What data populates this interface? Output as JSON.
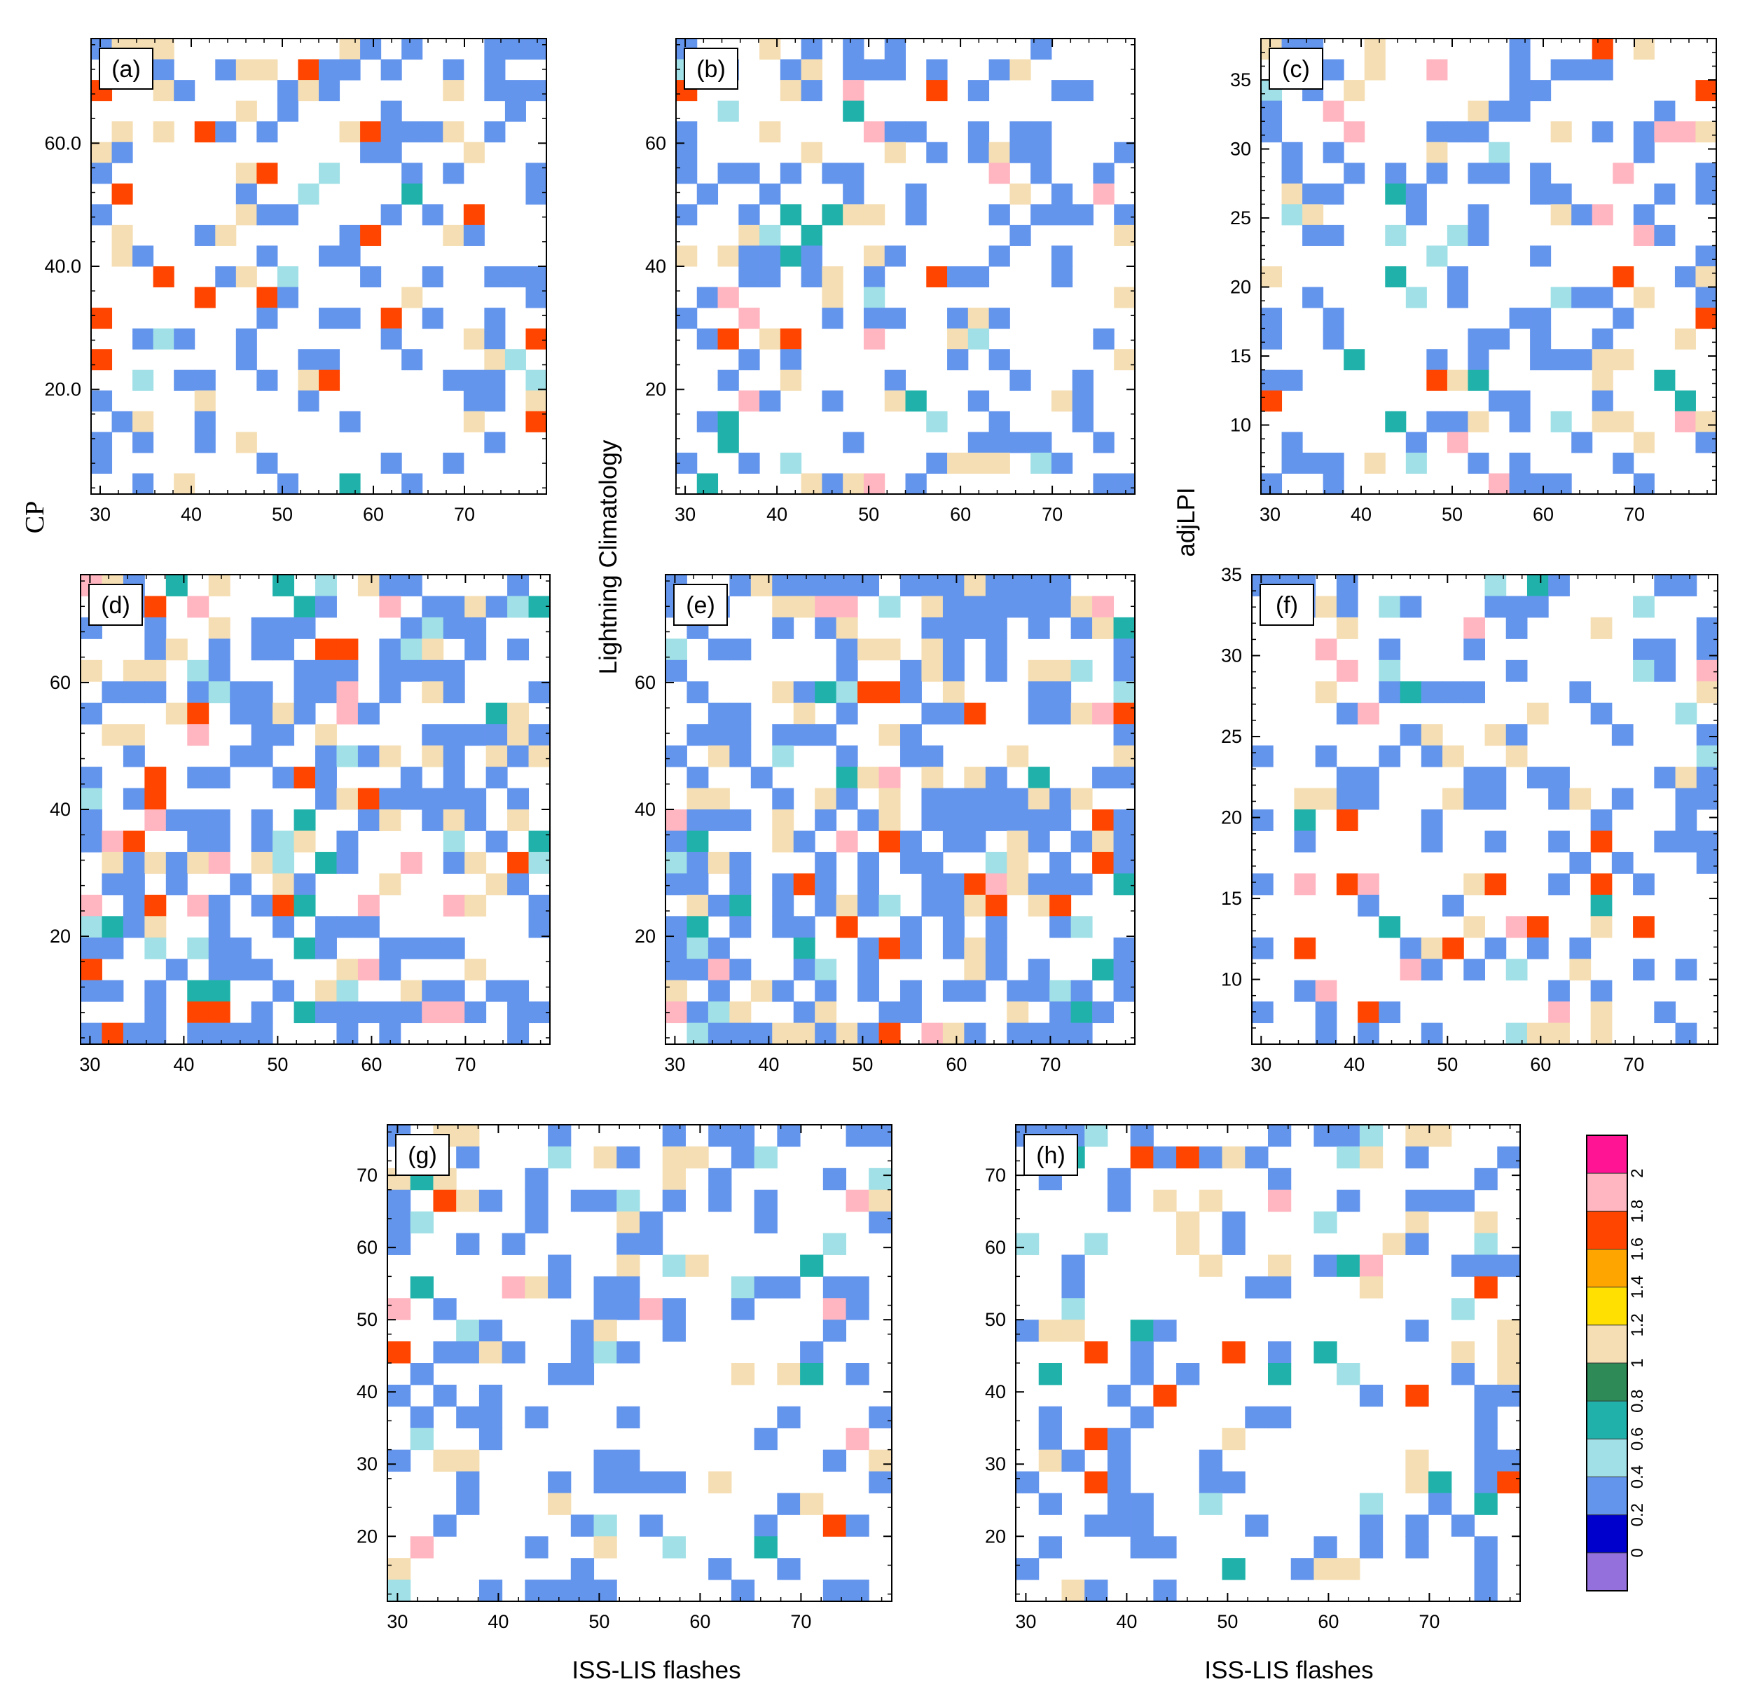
{
  "chart_data": {
    "type": "heatmap",
    "figure": {
      "x_axis_title": "ISS-LIS flashes",
      "y_axis_titles": [
        "CP",
        "Lightning Climatology",
        "adjLPI"
      ]
    },
    "colorbar": {
      "tick_labels": [
        "0",
        "0.2",
        "0.4",
        "0.6",
        "0.8",
        "1",
        "1.2",
        "1.4",
        "1.6",
        "1.8",
        "2"
      ],
      "colors": [
        "#9370db",
        "#0000cd",
        "#6495ed",
        "#a0e0e6",
        "#20b2aa",
        "#2e8b57",
        "#f5deb3",
        "#ffe000",
        "#ffa500",
        "#ff4500",
        "#ffb6c1",
        "#ff1493"
      ]
    },
    "panels": [
      {
        "id": "a",
        "label": "(a)",
        "xlim": [
          29,
          79
        ],
        "ylim": [
          3,
          77
        ],
        "xticks": [
          "30",
          "40",
          "50",
          "60",
          "70"
        ],
        "xvals": [
          30,
          40,
          50,
          60,
          70
        ],
        "yticks": [
          "20.0",
          "40.0",
          "60.0"
        ],
        "yvals": [
          20,
          40,
          60
        ],
        "show_xlabel": false,
        "seed": 11,
        "fill": 0.34,
        "max_level": 1.7
      },
      {
        "id": "b",
        "label": "(b)",
        "xlim": [
          29,
          79
        ],
        "ylim": [
          3,
          77
        ],
        "xticks": [
          "30",
          "40",
          "50",
          "60",
          "70"
        ],
        "xvals": [
          30,
          40,
          50,
          60,
          70
        ],
        "yticks": [
          "20",
          "40",
          "60"
        ],
        "yvals": [
          20,
          40,
          60
        ],
        "show_xlabel": false,
        "seed": 23,
        "fill": 0.3,
        "max_level": 2.0
      },
      {
        "id": "c",
        "label": "(c)",
        "xlim": [
          29,
          79
        ],
        "ylim": [
          5,
          38
        ],
        "xticks": [
          "30",
          "40",
          "50",
          "60",
          "70"
        ],
        "xvals": [
          30,
          40,
          50,
          60,
          70
        ],
        "yticks": [
          "10",
          "15",
          "20",
          "25",
          "30",
          "35"
        ],
        "yvals": [
          10,
          15,
          20,
          25,
          30,
          35
        ],
        "show_xlabel": false,
        "seed": 37,
        "fill": 0.3,
        "max_level": 2.0
      },
      {
        "id": "d",
        "label": "(d)",
        "xlim": [
          29,
          79
        ],
        "ylim": [
          3,
          77
        ],
        "xticks": [
          "30",
          "40",
          "50",
          "60",
          "70"
        ],
        "xvals": [
          30,
          40,
          50,
          60,
          70
        ],
        "yticks": [
          "20",
          "40",
          "60"
        ],
        "yvals": [
          20,
          40,
          60
        ],
        "show_xlabel": false,
        "seed": 41,
        "fill": 0.52,
        "max_level": 2.0
      },
      {
        "id": "e",
        "label": "(e)",
        "xlim": [
          29,
          79
        ],
        "ylim": [
          3,
          77
        ],
        "xticks": [
          "30",
          "40",
          "50",
          "60",
          "70"
        ],
        "xvals": [
          30,
          40,
          50,
          60,
          70
        ],
        "yticks": [
          "20",
          "40",
          "60"
        ],
        "yvals": [
          20,
          40,
          60
        ],
        "show_xlabel": false,
        "seed": 53,
        "fill": 0.55,
        "max_level": 2.0
      },
      {
        "id": "f",
        "label": "(f)",
        "xlim": [
          29,
          79
        ],
        "ylim": [
          6,
          35
        ],
        "xticks": [
          "30",
          "40",
          "50",
          "60",
          "70"
        ],
        "xvals": [
          30,
          40,
          50,
          60,
          70
        ],
        "yticks": [
          "10",
          "15",
          "20",
          "25",
          "30",
          "35"
        ],
        "yvals": [
          10,
          15,
          20,
          25,
          30,
          35
        ],
        "show_xlabel": false,
        "seed": 67,
        "fill": 0.3,
        "max_level": 2.0
      },
      {
        "id": "g",
        "label": "(g)",
        "xlim": [
          29,
          79
        ],
        "ylim": [
          11,
          77
        ],
        "xticks": [
          "30",
          "40",
          "50",
          "60",
          "70"
        ],
        "xvals": [
          30,
          40,
          50,
          60,
          70
        ],
        "yticks": [
          "20",
          "30",
          "40",
          "50",
          "60",
          "70"
        ],
        "yvals": [
          20,
          30,
          40,
          50,
          60,
          70
        ],
        "show_xlabel": true,
        "seed": 79,
        "fill": 0.32,
        "max_level": 2.0
      },
      {
        "id": "h",
        "label": "(h)",
        "xlim": [
          29,
          79
        ],
        "ylim": [
          11,
          77
        ],
        "xticks": [
          "30",
          "40",
          "50",
          "60",
          "70"
        ],
        "xvals": [
          30,
          40,
          50,
          60,
          70
        ],
        "yticks": [
          "20",
          "30",
          "40",
          "50",
          "60",
          "70"
        ],
        "yvals": [
          20,
          30,
          40,
          50,
          60,
          70
        ],
        "show_xlabel": true,
        "seed": 97,
        "fill": 0.32,
        "max_level": 2.0
      }
    ]
  }
}
